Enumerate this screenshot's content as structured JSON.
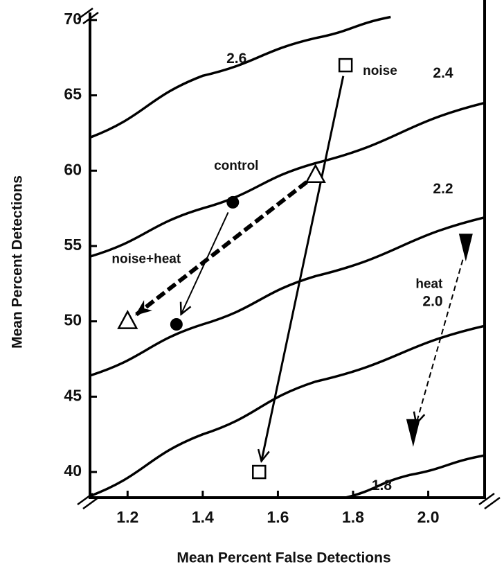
{
  "chart_data": {
    "type": "scatter",
    "xlabel": "Mean Percent False Detections",
    "ylabel": "Mean Percent Detections",
    "xlim": [
      1.1,
      2.15
    ],
    "ylim": [
      38.3,
      70.5
    ],
    "xticks": [
      1.2,
      1.4,
      1.6,
      1.8,
      {
        "value": 2,
        "label": "2.0"
      }
    ],
    "yticks": [
      40,
      45,
      50,
      55,
      60,
      65,
      70
    ],
    "curves": [
      {
        "name": "2.6",
        "x": [
          1.1,
          1.4,
          1.7,
          1.9
        ],
        "y": [
          62.2,
          66.3,
          68.8,
          70.2
        ]
      },
      {
        "name": "2.4",
        "x": [
          1.1,
          1.4,
          1.7,
          2.15
        ],
        "y": [
          54.3,
          57.5,
          60.5,
          64.5
        ]
      },
      {
        "name": "2.2",
        "x": [
          1.1,
          1.4,
          1.7,
          2.15
        ],
        "y": [
          46.4,
          49.8,
          53,
          56.9
        ]
      },
      {
        "name": "2.0",
        "x": [
          1.1,
          1.4,
          1.7,
          2.15
        ],
        "y": [
          38.4,
          42.5,
          46,
          49.7
        ]
      },
      {
        "name": "1.8",
        "x": [
          1.78,
          1.95,
          2.15
        ],
        "y": [
          38.3,
          39.8,
          41.1
        ]
      }
    ],
    "series": [
      {
        "name": "noise",
        "marker": "square",
        "line": "solid",
        "x": [
          1.78,
          1.55
        ],
        "y": [
          67,
          40
        ]
      },
      {
        "name": "control",
        "marker": "circle",
        "line": "thin",
        "x": [
          1.48,
          1.33
        ],
        "y": [
          57.9,
          49.8
        ]
      },
      {
        "name": "noise+heat",
        "marker": "triangle",
        "line": "thick-dashed",
        "x": [
          1.7,
          1.2
        ],
        "y": [
          59.7,
          50
        ]
      },
      {
        "name": "heat",
        "marker": "arrowhead",
        "line": "dashed",
        "x": [
          2.1,
          1.96
        ],
        "y": [
          54.8,
          42.5
        ]
      }
    ],
    "color": "#000000"
  }
}
